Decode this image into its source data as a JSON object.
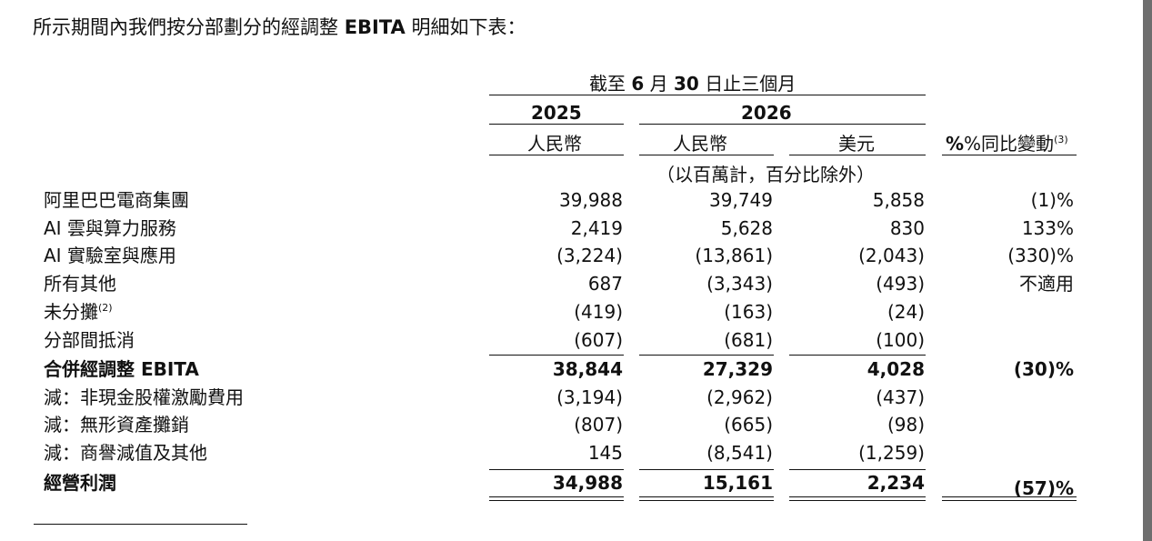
{
  "intro": {
    "prefix": "所示期間內我們按分部劃分的經調整 ",
    "emph": "EBITA",
    "suffix": " 明細如下表："
  },
  "header": {
    "period": {
      "pre": "截至 ",
      "month": "6",
      "mid": " 月 ",
      "day": "30",
      "post": " 日止三個月"
    },
    "year1": "2025",
    "year2": "2026",
    "cur1": "人民幣",
    "cur2": "人民幣",
    "cur3": "美元",
    "yoy": "%同比變動",
    "yoy_note": "(3)",
    "unit": "（以百萬計，百分比除外）"
  },
  "rows": [
    {
      "label": "阿里巴巴電商集團",
      "note": "",
      "v2025": "39,988",
      "v2026rmb": "39,749",
      "v2026usd": "5,858",
      "yoy": "(1)%",
      "bold": false
    },
    {
      "label": "AI 雲與算力服務",
      "note": "",
      "v2025": "2,419",
      "v2026rmb": "5,628",
      "v2026usd": "830",
      "yoy": "133%",
      "bold": false
    },
    {
      "label": "AI 實驗室與應用",
      "note": "",
      "v2025": "(3,224)",
      "v2026rmb": "(13,861)",
      "v2026usd": "(2,043)",
      "yoy": "(330)%",
      "bold": false
    },
    {
      "label": "所有其他",
      "note": "",
      "v2025": "687",
      "v2026rmb": "(3,343)",
      "v2026usd": "(493)",
      "yoy": "不適用",
      "bold": false
    },
    {
      "label": "未分攤",
      "note": "(2)",
      "v2025": "(419)",
      "v2026rmb": "(163)",
      "v2026usd": "(24)",
      "yoy": "",
      "bold": false
    },
    {
      "label": "分部間抵消",
      "note": "",
      "v2025": "(607)",
      "v2026rmb": "(681)",
      "v2026usd": "(100)",
      "yoy": "",
      "bold": false
    },
    {
      "label": "合併經調整 EBITA",
      "note": "",
      "v2025": "38,844",
      "v2026rmb": "27,329",
      "v2026usd": "4,028",
      "yoy": "(30)%",
      "bold": true
    },
    {
      "label": "減：非現金股權激勵費用",
      "note": "",
      "v2025": "(3,194)",
      "v2026rmb": "(2,962)",
      "v2026usd": "(437)",
      "yoy": "",
      "bold": false
    },
    {
      "label": "減：無形資產攤銷",
      "note": "",
      "v2025": "(807)",
      "v2026rmb": "(665)",
      "v2026usd": "(98)",
      "yoy": "",
      "bold": false
    },
    {
      "label": "減：商譽減值及其他",
      "note": "",
      "v2025": "145",
      "v2026rmb": "(8,541)",
      "v2026usd": "(1,259)",
      "yoy": "",
      "bold": false
    },
    {
      "label": "經營利潤",
      "note": "",
      "v2025": "34,988",
      "v2026rmb": "15,161",
      "v2026usd": "2,234",
      "yoy": "(57)%",
      "bold": true
    }
  ]
}
